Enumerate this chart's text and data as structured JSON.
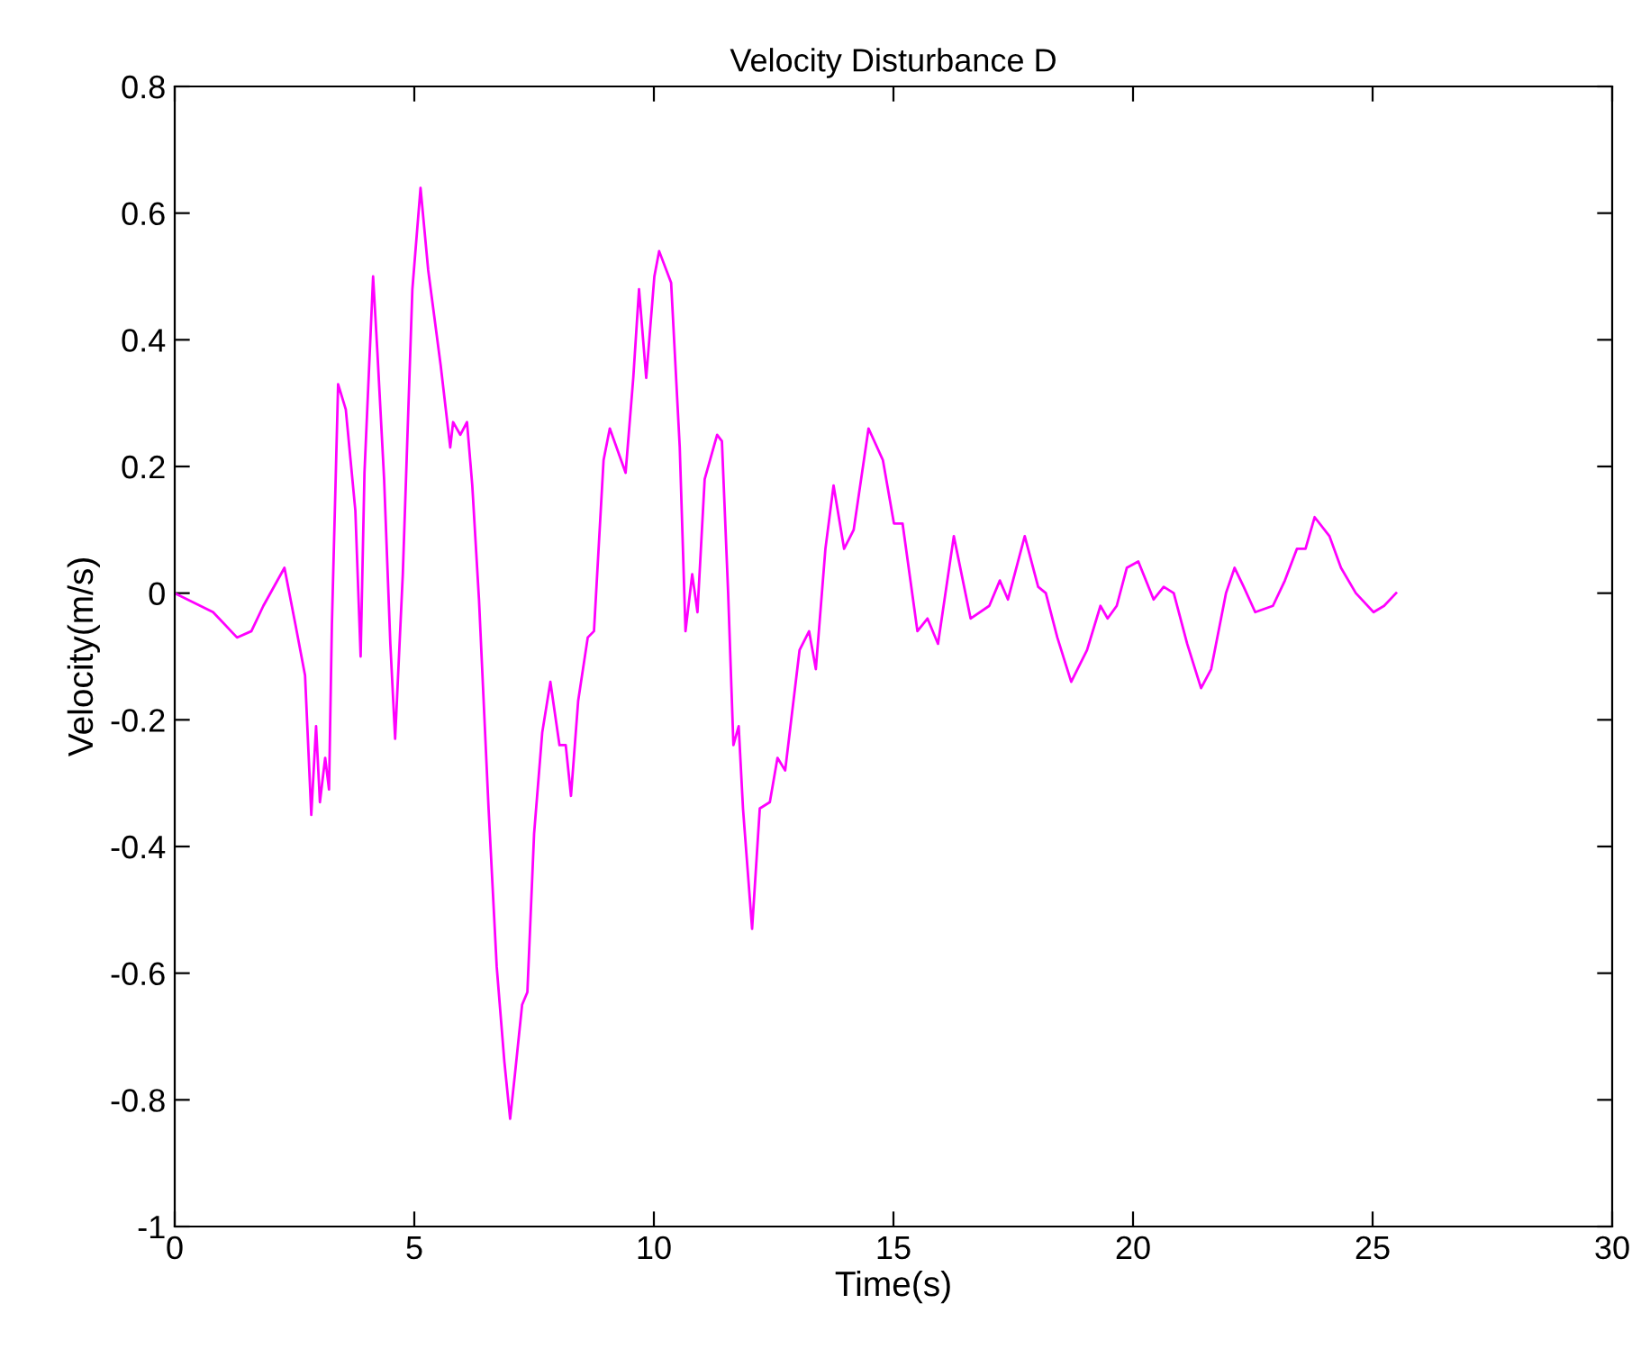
{
  "chart_data": {
    "type": "line",
    "title": "Velocity Disturbance D",
    "xlabel": "Time(s)",
    "ylabel": "Velocity(m/s)",
    "xlim": [
      0,
      30
    ],
    "xticks": [
      0,
      5,
      10,
      15,
      20,
      25,
      30
    ],
    "ylim": [
      -1,
      0.8
    ],
    "yticks": [
      -1,
      -0.8,
      -0.6,
      -0.4,
      -0.2,
      0,
      0.2,
      0.4,
      0.6,
      0.8
    ],
    "grid": false,
    "legend": false,
    "series": [
      {
        "color": "#ff00ff",
        "x": [
          0,
          0.8,
          1.3,
          1.6,
          1.85,
          2.29,
          2.52,
          2.72,
          2.85,
          2.95,
          3.03,
          3.14,
          3.22,
          3.28,
          3.41,
          3.57,
          3.77,
          3.88,
          3.96,
          4.14,
          4.23,
          4.37,
          4.5,
          4.6,
          4.76,
          4.96,
          5.13,
          5.29,
          5.55,
          5.75,
          5.81,
          5.96,
          6.1,
          6.21,
          6.35,
          6.55,
          6.72,
          6.88,
          7.0,
          7.1,
          7.25,
          7.36,
          7.5,
          7.67,
          7.84,
          8.03,
          8.16,
          8.27,
          8.42,
          8.62,
          8.75,
          8.95,
          9.08,
          9.41,
          9.57,
          9.69,
          9.84,
          10.01,
          10.11,
          10.36,
          10.54,
          10.66,
          10.8,
          10.91,
          11.06,
          11.32,
          11.42,
          11.55,
          11.66,
          11.77,
          11.86,
          12.05,
          12.21,
          12.42,
          12.58,
          12.74,
          13.04,
          13.24,
          13.38,
          13.58,
          13.75,
          13.97,
          14.17,
          14.48,
          14.78,
          15.01,
          15.19,
          15.5,
          15.71,
          15.93,
          16.26,
          16.61,
          17.0,
          17.22,
          17.39,
          17.74,
          18.02,
          18.18,
          18.42,
          18.71,
          19.04,
          19.32,
          19.47,
          19.66,
          19.87,
          20.11,
          20.43,
          20.64,
          20.85,
          21.13,
          21.42,
          21.63,
          21.94,
          22.12,
          22.31,
          22.55,
          22.92,
          23.17,
          23.42,
          23.6,
          23.79,
          24.1,
          24.34,
          24.65,
          25.02,
          25.24,
          25.49
        ],
        "values": [
          0,
          -0.03,
          -0.07,
          -0.06,
          -0.02,
          0.04,
          -0.05,
          -0.13,
          -0.35,
          -0.21,
          -0.33,
          -0.26,
          -0.31,
          -0.05,
          0.33,
          0.29,
          0.13,
          -0.1,
          0.19,
          0.5,
          0.38,
          0.18,
          -0.08,
          -0.23,
          0.03,
          0.48,
          0.64,
          0.51,
          0.36,
          0.23,
          0.27,
          0.25,
          0.27,
          0.17,
          -0.01,
          -0.34,
          -0.59,
          -0.74,
          -0.83,
          -0.76,
          -0.65,
          -0.63,
          -0.38,
          -0.22,
          -0.14,
          -0.24,
          -0.24,
          -0.32,
          -0.17,
          -0.07,
          -0.06,
          0.21,
          0.26,
          0.19,
          0.34,
          0.48,
          0.34,
          0.5,
          0.54,
          0.49,
          0.23,
          -0.06,
          0.03,
          -0.03,
          0.18,
          0.25,
          0.24,
          0,
          -0.24,
          -0.21,
          -0.34,
          -0.53,
          -0.34,
          -0.33,
          -0.26,
          -0.28,
          -0.09,
          -0.06,
          -0.12,
          0.07,
          0.17,
          0.07,
          0.1,
          0.26,
          0.21,
          0.11,
          0.11,
          -0.06,
          -0.04,
          -0.08,
          0.09,
          -0.04,
          -0.02,
          0.02,
          -0.01,
          0.09,
          0.01,
          0,
          -0.07,
          -0.14,
          -0.09,
          -0.02,
          -0.04,
          -0.02,
          0.04,
          0.05,
          -0.01,
          0.01,
          0,
          -0.08,
          -0.15,
          -0.12,
          0,
          0.04,
          0.01,
          -0.03,
          -0.02,
          0.02,
          0.07,
          0.07,
          0.12,
          0.09,
          0.04,
          0,
          -0.03,
          -0.02,
          0
        ]
      }
    ]
  }
}
